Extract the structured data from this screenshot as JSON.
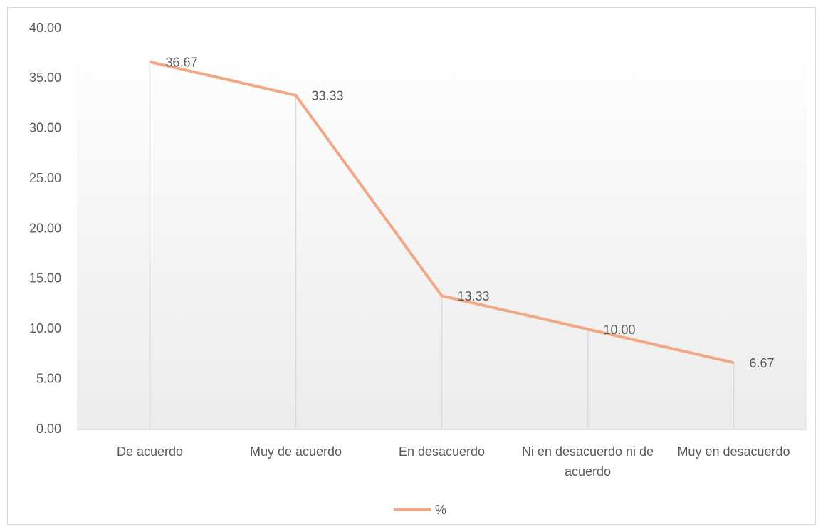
{
  "chart_data": {
    "type": "line",
    "categories": [
      "De acuerdo",
      "Muy de acuerdo",
      "En desacuerdo",
      "Ni en desacuerdo ni de acuerdo",
      "Muy en desacuerdo"
    ],
    "series": [
      {
        "name": "%",
        "color": "#f2a887",
        "values": [
          36.67,
          33.33,
          13.33,
          10.0,
          6.67
        ],
        "value_labels": [
          "36.67",
          "33.33",
          "13.33",
          "10.00",
          "6.67"
        ]
      }
    ],
    "ylim": [
      0,
      40
    ],
    "yticks": [
      {
        "value": 0,
        "label": "0.00"
      },
      {
        "value": 5,
        "label": "5.00"
      },
      {
        "value": 10,
        "label": "10.00"
      },
      {
        "value": 15,
        "label": "15.00"
      },
      {
        "value": 20,
        "label": "20.00"
      },
      {
        "value": 25,
        "label": "25.00"
      },
      {
        "value": 30,
        "label": "30.00"
      },
      {
        "value": 35,
        "label": "35.00"
      },
      {
        "value": 40,
        "label": "40.00"
      }
    ],
    "drop_lines": true,
    "legend": "bottom"
  }
}
